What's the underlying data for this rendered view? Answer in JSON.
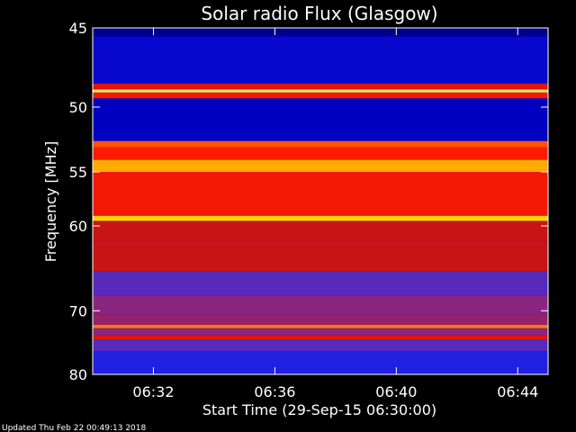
{
  "chart_data": {
    "type": "heatmap",
    "title": "Solar radio Flux (Glasgow)",
    "xlabel": "Start Time (29-Sep-15 06:30:00)",
    "ylabel": "Frequency [MHz]",
    "x_ticks": [
      "06:32",
      "06:36",
      "06:40",
      "06:44"
    ],
    "x_tick_minutes": [
      2,
      6,
      10,
      14
    ],
    "xlim_minutes": [
      0,
      15
    ],
    "y_ticks": [
      45,
      50,
      55,
      60,
      70,
      80
    ],
    "ylim": [
      45,
      80
    ],
    "y_scale": "reciprocal",
    "colormap": [
      "#000022",
      "#0000c8",
      "#2a2ae8",
      "#7a2a9a",
      "#c81414",
      "#ff1a00",
      "#ff7a00",
      "#ffd200",
      "#ffffff"
    ],
    "bands": [
      {
        "from": 45.0,
        "to": 45.5,
        "level": 0.08
      },
      {
        "from": 45.5,
        "to": 48.4,
        "level": 0.15
      },
      {
        "from": 48.4,
        "to": 48.8,
        "level": 0.55
      },
      {
        "from": 48.8,
        "to": 49.0,
        "level": 0.92
      },
      {
        "from": 49.0,
        "to": 49.4,
        "level": 0.6
      },
      {
        "from": 49.4,
        "to": 50.5,
        "level": 0.12
      },
      {
        "from": 50.5,
        "to": 52.5,
        "level": 0.12
      },
      {
        "from": 52.5,
        "to": 53.0,
        "level": 0.7
      },
      {
        "from": 53.0,
        "to": 54.0,
        "level": 0.62
      },
      {
        "from": 54.0,
        "to": 55.0,
        "level": 0.82
      },
      {
        "from": 55.0,
        "to": 59.0,
        "level": 0.6
      },
      {
        "from": 59.0,
        "to": 59.5,
        "level": 0.88
      },
      {
        "from": 59.5,
        "to": 61.5,
        "level": 0.5
      },
      {
        "from": 61.5,
        "to": 65.0,
        "level": 0.5
      },
      {
        "from": 65.0,
        "to": 68.0,
        "level": 0.32
      },
      {
        "from": 68.0,
        "to": 70.5,
        "level": 0.4
      },
      {
        "from": 70.5,
        "to": 72.0,
        "level": 0.42
      },
      {
        "from": 72.0,
        "to": 72.5,
        "level": 0.75
      },
      {
        "from": 72.5,
        "to": 73.5,
        "level": 0.4
      },
      {
        "from": 73.5,
        "to": 74.2,
        "level": 0.55
      },
      {
        "from": 74.2,
        "to": 76.0,
        "level": 0.32
      },
      {
        "from": 76.0,
        "to": 80.0,
        "level": 0.22
      }
    ],
    "grid": false,
    "legend": "none"
  },
  "footer": {
    "updated": "Updated Thu Feb 22 00:49:13 2018"
  }
}
